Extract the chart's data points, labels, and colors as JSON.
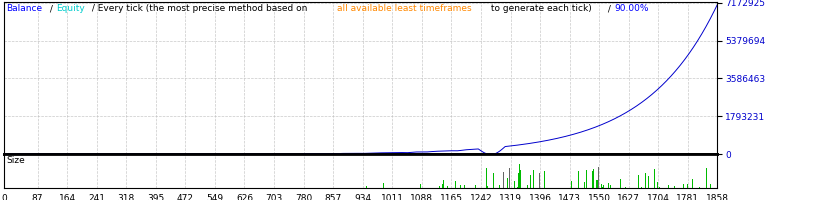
{
  "title_parts": [
    {
      "text": "Balance",
      "color": "#0000FF"
    },
    {
      "text": " / ",
      "color": "#000000"
    },
    {
      "text": "Equity",
      "color": "#00CCCC"
    },
    {
      "text": " / Every tick (the most precise method based on ",
      "color": "#000000"
    },
    {
      "text": "all available least timeframes",
      "color": "#FF8800"
    },
    {
      "text": " to generate each tick)",
      "color": "#000000"
    },
    {
      "text": " / ",
      "color": "#000000"
    },
    {
      "text": "90.00%",
      "color": "#0000FF"
    }
  ],
  "y_ticks": [
    0,
    1793231,
    3586463,
    5379694,
    7172925
  ],
  "x_ticks": [
    0,
    87,
    164,
    241,
    318,
    395,
    472,
    549,
    626,
    703,
    780,
    857,
    934,
    1011,
    1088,
    1165,
    1242,
    1319,
    1396,
    1473,
    1550,
    1627,
    1704,
    1781,
    1858
  ],
  "y_max": 7172925,
  "y_min": 0,
  "x_min": 0,
  "x_max": 1858,
  "bg_color": "#FFFFFF",
  "grid_color": "#BBBBBB",
  "line_color": "#0000CC",
  "size_label_color": "#000000",
  "bar_color": "#00BB00",
  "dark_bar_color": "#666666",
  "size_label": "Size",
  "separator_color": "#000000",
  "title_fontsize": 6.5,
  "tick_fontsize": 6.5,
  "bottom_tick_fontsize": 6.5
}
